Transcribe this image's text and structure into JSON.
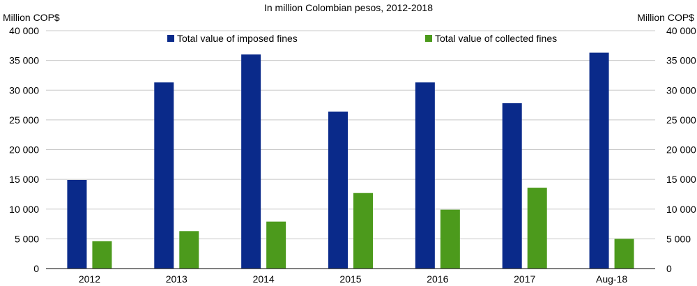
{
  "chart_data": {
    "type": "bar",
    "title": "In million Colombian pesos, 2012-2018",
    "ylabel_left": "Million COP$",
    "ylabel_right": "Million COP$",
    "categories": [
      "2012",
      "2013",
      "2014",
      "2015",
      "2016",
      "2017",
      "Aug-18"
    ],
    "series": [
      {
        "name": "Total value of imposed fines",
        "color": "#0a2a8a",
        "values": [
          14900,
          31300,
          36000,
          26400,
          31300,
          27800,
          36300
        ]
      },
      {
        "name": "Total value of collected fines",
        "color": "#4c9a1c",
        "values": [
          4600,
          6300,
          7900,
          12700,
          9900,
          13600,
          5000
        ]
      }
    ],
    "ylim": [
      0,
      40000
    ],
    "yticks": [
      "0",
      "5 000",
      "10 000",
      "15 000",
      "20 000",
      "25 000",
      "30 000",
      "35 000",
      "40 000"
    ],
    "grid": true,
    "legend_position": "top-center"
  }
}
